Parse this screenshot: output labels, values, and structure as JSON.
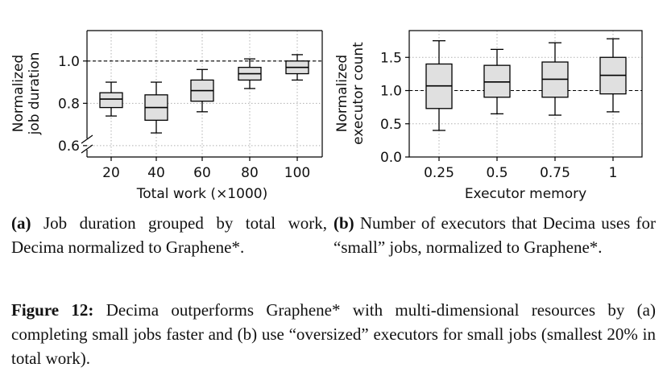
{
  "chart_data": [
    {
      "type": "box",
      "xlabel": "Total work (×1000)",
      "ylabel": "Normalized\njob duration",
      "categories": [
        "20",
        "40",
        "60",
        "80",
        "100"
      ],
      "yticks": [
        "0.6",
        "0.8",
        "1.0"
      ],
      "ylim": [
        0.6,
        1.1
      ],
      "axis_break": true,
      "reference_line": 1.0,
      "grid": true,
      "boxes": [
        {
          "min": 0.74,
          "q1": 0.78,
          "median": 0.82,
          "q3": 0.85,
          "max": 0.9
        },
        {
          "min": 0.66,
          "q1": 0.72,
          "median": 0.78,
          "q3": 0.84,
          "max": 0.9
        },
        {
          "min": 0.76,
          "q1": 0.81,
          "median": 0.86,
          "q3": 0.91,
          "max": 0.96
        },
        {
          "min": 0.87,
          "q1": 0.91,
          "median": 0.94,
          "q3": 0.97,
          "max": 1.01
        },
        {
          "min": 0.91,
          "q1": 0.94,
          "median": 0.97,
          "q3": 1.0,
          "max": 1.03
        }
      ]
    },
    {
      "type": "box",
      "xlabel": "Executor memory",
      "ylabel": "Normalized\nexecutor count",
      "categories": [
        "0.25",
        "0.5",
        "0.75",
        "1"
      ],
      "yticks": [
        "0.0",
        "0.5",
        "1.0",
        "1.5"
      ],
      "ylim": [
        0.0,
        1.9
      ],
      "reference_line": 1.0,
      "grid": true,
      "boxes": [
        {
          "min": 0.4,
          "q1": 0.73,
          "median": 1.07,
          "q3": 1.4,
          "max": 1.75
        },
        {
          "min": 0.65,
          "q1": 0.9,
          "median": 1.13,
          "q3": 1.38,
          "max": 1.62
        },
        {
          "min": 0.63,
          "q1": 0.9,
          "median": 1.17,
          "q3": 1.43,
          "max": 1.72
        },
        {
          "min": 0.68,
          "q1": 0.95,
          "median": 1.23,
          "q3": 1.5,
          "max": 1.78
        }
      ]
    }
  ],
  "captions": {
    "a_tag": "(a)",
    "a_text": "Job duration grouped by total work, Decima normalized to Graphene*.",
    "b_tag": "(b)",
    "b_text": "Number of executors that Decima uses for “small” jobs, normalized to Graphene*.",
    "fig_tag": "Figure 12:",
    "fig_text": "Decima outperforms Graphene* with multi-dimensional resources by (a) completing small jobs faster and (b) use “oversized” executors for small jobs (smallest 20% in total work)."
  },
  "colors": {
    "box_fill": "#e0e0e0",
    "line": "#000000",
    "grid": "#b0b0b0"
  }
}
